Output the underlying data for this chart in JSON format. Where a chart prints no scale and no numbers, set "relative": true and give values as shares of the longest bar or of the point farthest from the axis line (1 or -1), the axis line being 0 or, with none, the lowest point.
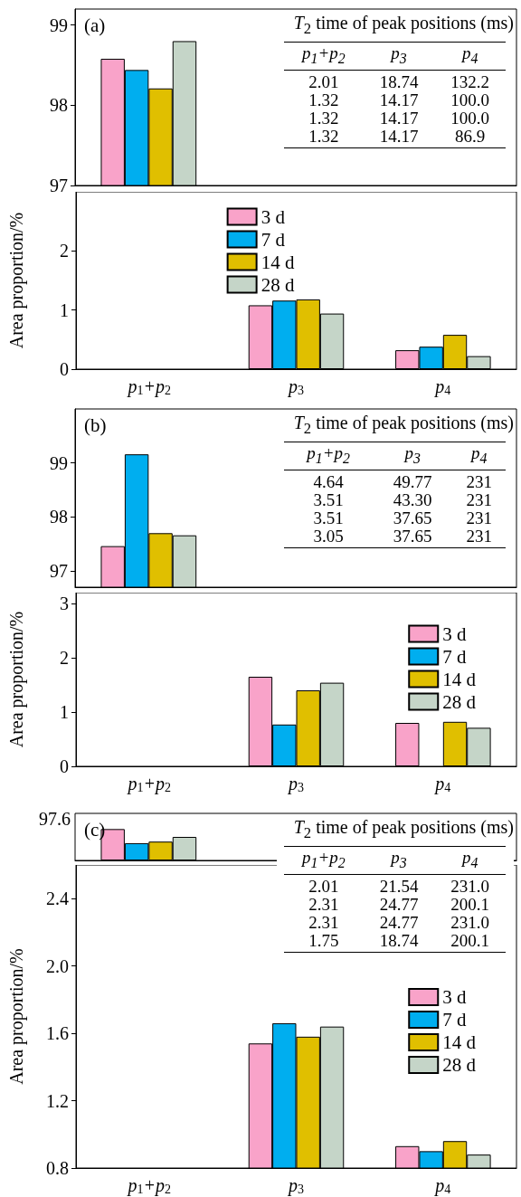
{
  "chart_data": [
    {
      "type": "bar",
      "title": "(a)",
      "tick_labels": "y",
      "ylim": [
        97,
        99.2
      ],
      "yticks": [
        97,
        98,
        99
      ],
      "annotations": [
        "T$_{2}$ time of peak positions (ms)",
        "p$_{1}$+p$_{2}$",
        "p$_{3}$",
        "p$_{4}$",
        "2.01",
        "18.74",
        "132.2",
        "1.32",
        "14.17",
        "100.0",
        "1.32",
        "14.17",
        "100.0",
        "1.32",
        "14.17",
        "86.9"
      ],
      "series": [
        {
          "color": "#f9a3c9",
          "values": [
            98.58,
            null,
            null
          ]
        },
        {
          "color": "#00aeef",
          "values": [
            98.44,
            null,
            null
          ]
        },
        {
          "color": "#e0bf00",
          "values": [
            98.21,
            null,
            null
          ]
        },
        {
          "color": "#c5d5c8",
          "values": [
            98.8,
            null,
            null
          ]
        }
      ]
    },
    {
      "type": "bar",
      "categories": [
        "p$_{1}$+p$_{2}$",
        "p$_{3}$",
        "p$_{4}$"
      ],
      "ylim": [
        0,
        3
      ],
      "yticks": [
        0,
        1,
        2
      ],
      "ylabel": "Area proportion/%",
      "legend": "top",
      "series": [
        {
          "name": "3 d",
          "color": "#f9a3c9",
          "values": [
            null,
            1.08,
            0.32
          ]
        },
        {
          "name": "7 d",
          "color": "#00aeef",
          "values": [
            null,
            1.16,
            0.38
          ]
        },
        {
          "name": "14 d",
          "color": "#e0bf00",
          "values": [
            null,
            1.18,
            0.58
          ]
        },
        {
          "name": "28 d",
          "color": "#c5d5c8",
          "values": [
            null,
            0.94,
            0.22
          ]
        }
      ]
    },
    {
      "type": "bar",
      "title": "(b)",
      "tick_labels": "y",
      "ylim": [
        96.7,
        100
      ],
      "yticks": [
        97,
        98,
        99
      ],
      "annotations": [
        "T$_{2}$ time of peak positions (ms)",
        "p$_{1}$+p$_{2}$",
        "p$_{3}$",
        "p$_{4}$",
        "4.64",
        "49.77",
        "231",
        "3.51",
        "43.30",
        "231",
        "3.51",
        "37.65",
        "231",
        "3.05",
        "37.65",
        "231"
      ],
      "series": [
        {
          "color": "#f9a3c9",
          "values": [
            97.46,
            null,
            null
          ]
        },
        {
          "color": "#00aeef",
          "values": [
            99.16,
            null,
            null
          ]
        },
        {
          "color": "#e0bf00",
          "values": [
            97.7,
            null,
            null
          ]
        },
        {
          "color": "#c5d5c8",
          "values": [
            97.66,
            null,
            null
          ]
        }
      ]
    },
    {
      "type": "bar",
      "categories": [
        "p$_{1}$+p$_{2}$",
        "p$_{3}$",
        "p$_{4}$"
      ],
      "ylim": [
        0,
        3.2
      ],
      "yticks": [
        0,
        1,
        2,
        3
      ],
      "ylabel": "Area proportion/%",
      "legend": "top right",
      "series": [
        {
          "name": "3 d",
          "color": "#f9a3c9",
          "values": [
            null,
            1.65,
            0.8
          ]
        },
        {
          "name": "7 d",
          "color": "#00aeef",
          "values": [
            null,
            0.77,
            null
          ]
        },
        {
          "name": "14 d",
          "color": "#e0bf00",
          "values": [
            null,
            1.4,
            0.82
          ]
        },
        {
          "name": "28 d",
          "color": "#c5d5c8",
          "values": [
            null,
            1.54,
            0.71
          ]
        }
      ]
    },
    {
      "type": "bar",
      "title": "(c)",
      "tick_labels": "y",
      "relative": true,
      "annotations": [
        "97.6",
        "T$_{2}$ time of peak positions (ms)",
        "p$_{1}$+p$_{2}$",
        "p$_{3}$",
        "p$_{4}$",
        "2.01",
        "21.54",
        "231.0",
        "2.31",
        "24.77",
        "200.1",
        "2.31",
        "24.77",
        "231.0",
        "1.75",
        "18.74",
        "200.1"
      ],
      "series": [
        {
          "color": "#f9a3c9",
          "values": [
            1,
            null,
            null
          ]
        },
        {
          "color": "#00aeef",
          "values": [
            0.55,
            null,
            null
          ]
        },
        {
          "color": "#e0bf00",
          "values": [
            0.6,
            null,
            null
          ]
        },
        {
          "color": "#c5d5c8",
          "values": [
            0.75,
            null,
            null
          ]
        }
      ]
    },
    {
      "type": "bar",
      "categories": [
        "p$_{1}$+p$_{2}$",
        "p$_{3}$",
        "p$_{4}$"
      ],
      "ylim": [
        0.8,
        2.6
      ],
      "yticks": [
        0.8,
        1.2,
        1.6,
        {
          "value": 2,
          "label": "2.0"
        },
        2.4
      ],
      "ylabel": "Area proportion/%",
      "legend": "right",
      "series": [
        {
          "name": "3 d",
          "color": "#f9a3c9",
          "values": [
            null,
            1.54,
            0.93
          ]
        },
        {
          "name": "7 d",
          "color": "#00aeef",
          "values": [
            null,
            1.66,
            0.9
          ]
        },
        {
          "name": "14 d",
          "color": "#e0bf00",
          "values": [
            null,
            1.58,
            0.96
          ]
        },
        {
          "name": "28 d",
          "color": "#c5d5c8",
          "values": [
            null,
            1.64,
            0.88
          ]
        }
      ]
    }
  ]
}
